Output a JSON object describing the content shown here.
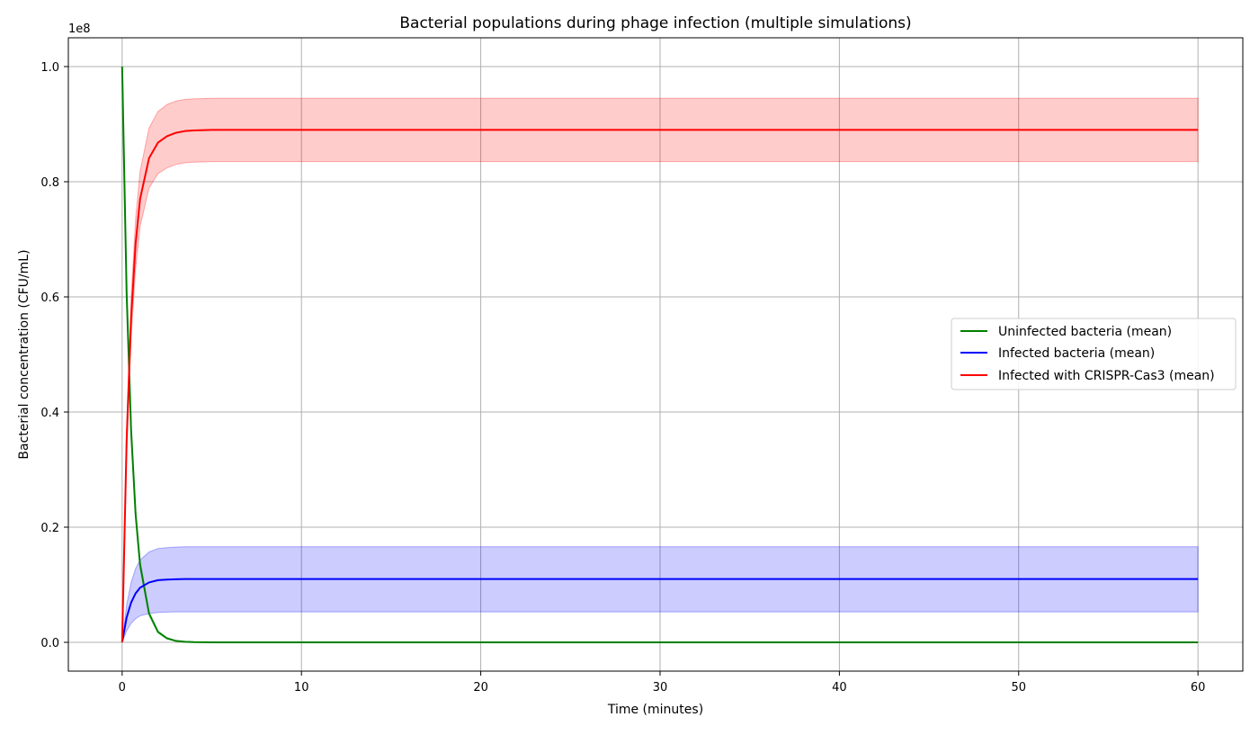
{
  "chart_data": {
    "type": "line",
    "title": "Bacterial populations during phage infection (multiple simulations)",
    "xlabel": "Time (minutes)",
    "ylabel": "Bacterial concentration (CFU/mL)",
    "y_offset_text": "1e8",
    "xlim": [
      -3,
      62.5
    ],
    "ylim": [
      -5000000,
      105000000
    ],
    "xticks": [
      0,
      10,
      20,
      30,
      40,
      50,
      60
    ],
    "xtick_labels": [
      "0",
      "10",
      "20",
      "30",
      "40",
      "50",
      "60"
    ],
    "yticks": [
      0,
      20000000,
      40000000,
      60000000,
      80000000,
      100000000
    ],
    "ytick_labels": [
      "0.0",
      "0.2",
      "0.4",
      "0.6",
      "0.8",
      "1.0"
    ],
    "grid": true,
    "legend_position": "center-right",
    "x": [
      0,
      0.25,
      0.5,
      0.75,
      1,
      1.5,
      2,
      2.5,
      3,
      3.5,
      4,
      5,
      6,
      8,
      10,
      15,
      20,
      30,
      40,
      50,
      60
    ],
    "series": [
      {
        "name": "Uninfected bacteria (mean)",
        "color": "#008000",
        "values": [
          100000000,
          60700000,
          36800000,
          22300000,
          13500000,
          5000000,
          1800000,
          700000,
          250000,
          90000,
          30000,
          5000,
          1000,
          0,
          0,
          0,
          0,
          0,
          0,
          0,
          0
        ],
        "band_low": [
          100000000,
          60000000,
          35800000,
          21300000,
          12700000,
          4500000,
          1500000,
          550000,
          190000,
          60000,
          20000,
          3000,
          500,
          0,
          0,
          0,
          0,
          0,
          0,
          0,
          0
        ],
        "band_high": [
          100000000,
          61400000,
          37800000,
          23300000,
          14300000,
          5500000,
          2100000,
          850000,
          310000,
          120000,
          40000,
          7000,
          1500,
          0,
          0,
          0,
          0,
          0,
          0,
          0,
          0
        ],
        "band_color": "#90ee90"
      },
      {
        "name": "Infected bacteria (mean)",
        "color": "#0000ff",
        "values": [
          0,
          4300000,
          6900000,
          8500000,
          9500000,
          10400000,
          10800000,
          10900000,
          10950000,
          11000000,
          11000000,
          11000000,
          11000000,
          11000000,
          11000000,
          11000000,
          11000000,
          11000000,
          11000000,
          11000000,
          11000000
        ],
        "band_low": [
          0,
          2000000,
          3300000,
          4100000,
          4600000,
          5000000,
          5200000,
          5250000,
          5300000,
          5300000,
          5300000,
          5300000,
          5300000,
          5300000,
          5300000,
          5300000,
          5300000,
          5300000,
          5300000,
          5300000,
          5300000
        ],
        "band_high": [
          0,
          6500000,
          10400000,
          12800000,
          14300000,
          15700000,
          16300000,
          16450000,
          16550000,
          16600000,
          16600000,
          16600000,
          16600000,
          16600000,
          16600000,
          16600000,
          16600000,
          16600000,
          16600000,
          16600000,
          16600000
        ],
        "band_color": "#0000ff"
      },
      {
        "name": "Infected with CRISPR-Cas3 (mean)",
        "color": "#ff0000",
        "values": [
          0,
          35000000,
          56300000,
          69200000,
          77000000,
          84100000,
          86800000,
          87900000,
          88500000,
          88800000,
          88900000,
          89000000,
          89000000,
          89000000,
          89000000,
          89000000,
          89000000,
          89000000,
          89000000,
          89000000,
          89000000
        ],
        "band_low": [
          0,
          32800000,
          52800000,
          64900000,
          72200000,
          78900000,
          81400000,
          82400000,
          83000000,
          83300000,
          83400000,
          83500000,
          83500000,
          83500000,
          83500000,
          83500000,
          83500000,
          83500000,
          83500000,
          83500000,
          83500000
        ],
        "band_high": [
          0,
          37200000,
          59800000,
          73500000,
          81800000,
          89300000,
          92200000,
          93400000,
          94000000,
          94300000,
          94400000,
          94500000,
          94500000,
          94500000,
          94500000,
          94500000,
          94500000,
          94500000,
          94500000,
          94500000,
          94500000
        ],
        "band_color": "#ff0000"
      }
    ]
  }
}
